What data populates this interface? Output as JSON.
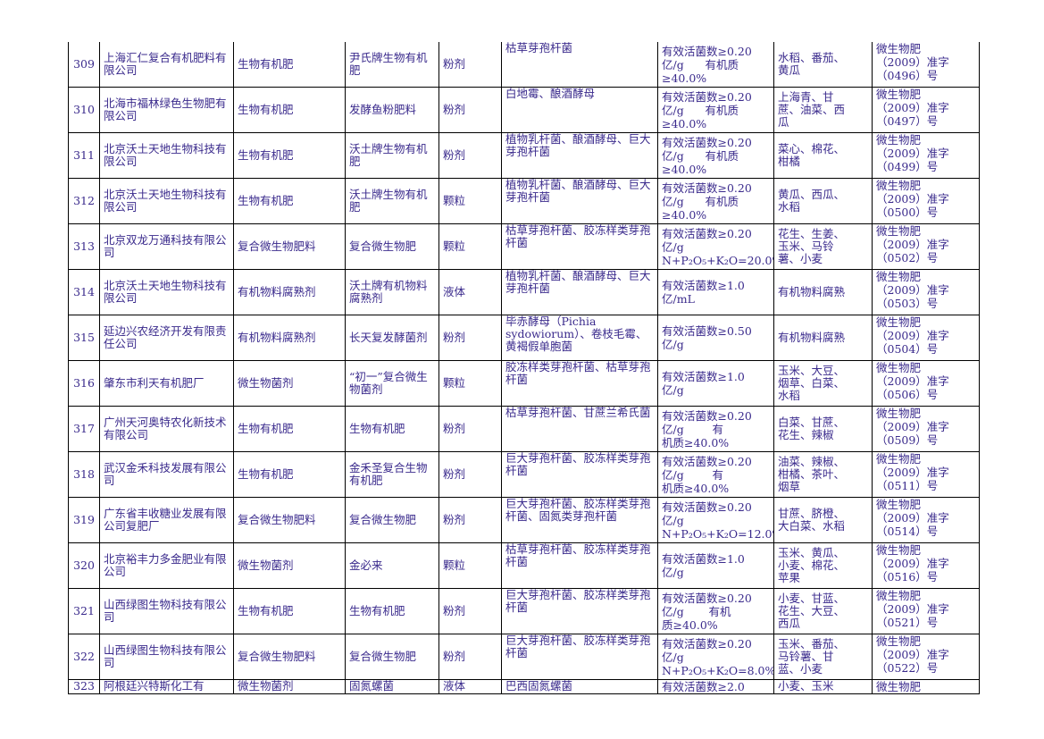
{
  "rows": [
    {
      "no": "309",
      "company": "上海汇仁复合有机肥料有限公司",
      "type": "生物有机肥",
      "product": "尹氏牌生物有机肥",
      "form": "粉剂",
      "strain": "枯草芽孢杆菌",
      "indicator": "有效活菌数≥0.20\n亿/g      有机质\n≥40.0%",
      "crops": "水稻、番茄、\n黄瓜",
      "reg": "微生物肥\n（2009）准字\n（0496）号"
    },
    {
      "no": "310",
      "company": "北海市福林绿色生物肥有限公司",
      "type": "生物有机肥",
      "product": "发酵鱼粉肥料",
      "form": "粉剂",
      "strain": "白地霉、酿酒酵母",
      "indicator": "有效活菌数≥0.20\n亿/g      有机质\n≥40.0%",
      "crops": "上海青、甘\n蔗、油菜、西\n瓜",
      "reg": "微生物肥\n（2009）准字\n（0497）号"
    },
    {
      "no": "311",
      "company": "北京沃土天地生物科技有限公司",
      "type": "生物有机肥",
      "product": "沃土牌生物有机肥",
      "form": "粉剂",
      "strain": "植物乳杆菌、酿酒酵母、巨大芽孢杆菌",
      "indicator": "有效活菌数≥0.20\n亿/g      有机质\n≥40.0%",
      "crops": "菜心、棉花、\n柑橘",
      "reg": "微生物肥\n（2009）准字\n（0499）号"
    },
    {
      "no": "312",
      "company": "北京沃土天地生物科技有限公司",
      "type": "生物有机肥",
      "product": "沃土牌生物有机肥",
      "form": "颗粒",
      "strain": "植物乳杆菌、酿酒酵母、巨大芽孢杆菌",
      "indicator": "有效活菌数≥0.20\n亿/g      有机质\n≥40.0%",
      "crops": "黄瓜、西瓜、\n水稻",
      "reg": "微生物肥\n（2009）准字\n（0500）号"
    },
    {
      "no": "313",
      "company": "北京双龙万通科技有限公司",
      "type": "复合微生物肥料",
      "product": "复合微生物肥",
      "form": "颗粒",
      "strain": "枯草芽孢杆菌、胶冻样类芽孢杆菌",
      "indicator": "有效活菌数≥0.20\n亿/g\nN+P₂O₅+K₂O=20.0%",
      "crops": "花生、生姜、\n玉米、马铃\n薯、小麦",
      "reg": "微生物肥\n（2009）准字\n（0502）号"
    },
    {
      "no": "314",
      "company": "北京沃土天地生物科技有限公司",
      "type": "有机物料腐熟剂",
      "product": "沃土牌有机物料腐熟剂",
      "form": "液体",
      "strain": "植物乳杆菌、酿酒酵母、巨大芽孢杆菌",
      "indicator": "有效活菌数≥1.0\n亿/mL",
      "crops": "有机物料腐熟",
      "reg": "微生物肥\n（2009）准字\n（0503）号"
    },
    {
      "no": "315",
      "company": "延边兴农经济开发有限责任公司",
      "type": "有机物料腐熟剂",
      "product": "长天复发酵菌剂",
      "form": "粉剂",
      "strain": "毕赤酵母（Pichia sydowiorum）、卷枝毛霉、黄褐假单胞菌",
      "indicator": "有效活菌数≥0.50\n亿/g",
      "crops": "有机物料腐熟",
      "reg": "微生物肥\n（2009）准字\n（0504）号"
    },
    {
      "no": "316",
      "company": "肇东市利天有机肥厂",
      "type": "微生物菌剂",
      "product": "“初一”复合微生物菌剂",
      "form": "颗粒",
      "strain": "胶冻样类芽孢杆菌、枯草芽孢杆菌",
      "indicator": "有效活菌数≥1.0\n亿/g",
      "crops": "玉米、大豆、\n烟草、白菜、\n水稻",
      "reg": "微生物肥\n（2009）准字\n（0506）号"
    },
    {
      "no": "317",
      "company": "广州天河奥特农化新技术有限公司",
      "type": "生物有机肥",
      "product": "生物有机肥",
      "form": "粉剂",
      "strain": "枯草芽孢杆菌、甘蔗兰希氏菌",
      "indicator": "有效活菌数≥0.20\n亿/g        有\n机质≥40.0%",
      "crops": "白菜、甘蔗、\n花生、辣椒",
      "reg": "微生物肥\n（2009）准字\n（0509）号"
    },
    {
      "no": "318",
      "company": "武汉金禾科技发展有限公司",
      "type": "生物有机肥",
      "product": "金禾圣复合生物有机肥",
      "form": "粉剂",
      "strain": "巨大芽孢杆菌、胶冻样类芽孢杆菌",
      "indicator": "有效活菌数≥0.20\n亿/g        有\n机质≥40.0%",
      "crops": "油菜、辣椒、\n柑橘、茶叶、\n烟草",
      "reg": "微生物肥\n（2009）准字\n（0511）号"
    },
    {
      "no": "319",
      "company": "广东省丰收糖业发展有限公司复肥厂",
      "type": "复合微生物肥料",
      "product": "复合微生物肥",
      "form": "粉剂",
      "strain": "巨大芽孢杆菌、胶冻样类芽孢杆菌、固氮类芽孢杆菌",
      "indicator": "有效活菌数≥0.20\n亿/g\nN+P₂O₅+K₂O=12.0%",
      "crops": "甘蔗、脐橙、\n大白菜、水稻",
      "reg": "微生物肥\n（2009）准字\n（0514）号"
    },
    {
      "no": "320",
      "company": "北京裕丰力多金肥业有限公司",
      "type": "微生物菌剂",
      "product": "金必来",
      "form": "颗粒",
      "strain": "枯草芽孢杆菌、胶冻样类芽孢杆菌",
      "indicator": "有效活菌数≥1.0\n亿/g",
      "crops": "玉米、黄瓜、\n小麦、棉花、\n苹果",
      "reg": "微生物肥\n（2009）准字\n（0516）号"
    },
    {
      "no": "321",
      "company": "山西绿图生物科技有限公司",
      "type": "生物有机肥",
      "product": "生物有机肥",
      "form": "粉剂",
      "strain": "巨大芽孢杆菌、胶冻样类芽孢杆菌",
      "indicator": "有效活菌数≥0.20\n亿/g       有机\n质≥40.0%",
      "crops": "小麦、甘蓝、\n花生、大豆、\n西瓜",
      "reg": "微生物肥\n（2009）准字\n（0521）号"
    },
    {
      "no": "322",
      "company": "山西绿图生物科技有限公司",
      "type": "复合微生物肥料",
      "product": "复合微生物肥",
      "form": "粉剂",
      "strain": "巨大芽孢杆菌、胶冻样类芽孢杆菌",
      "indicator": "有效活菌数≥0.20\n亿/g\nN+P₂O₅+K₂O=8.0%",
      "crops": "玉米、番茄、\n马铃薯、甘\n蓝、小麦",
      "reg": "微生物肥\n（2009）准字\n（0522）号"
    },
    {
      "no": "323",
      "company": "阿根廷兴特斯化工有",
      "type": "微生物菌剂",
      "product": "固氮螺菌",
      "form": "液体",
      "strain": "巴西固氮螺菌",
      "indicator": "有效活菌数≥2.0",
      "crops": "小麦、玉米",
      "reg": "微生物肥"
    }
  ]
}
